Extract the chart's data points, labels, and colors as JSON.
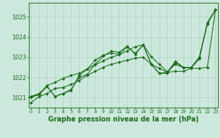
{
  "background_color": "#cce8dc",
  "line_color": "#1a6b1a",
  "grid_color": "#aacfbe",
  "xlabel": "Graphe pression niveau de la mer (hPa)",
  "xlabel_fontsize": 7,
  "ylim": [
    1020.5,
    1025.7
  ],
  "xlim": [
    -0.3,
    23.3
  ],
  "yticks": [
    1021,
    1022,
    1023,
    1024,
    1025
  ],
  "xticks": [
    0,
    1,
    2,
    3,
    4,
    5,
    6,
    7,
    8,
    9,
    10,
    11,
    12,
    13,
    14,
    15,
    16,
    17,
    18,
    19,
    20,
    21,
    22,
    23
  ],
  "series": [
    [
      1020.75,
      1021.05,
      1021.2,
      1021.45,
      1021.5,
      1021.65,
      1021.85,
      1022.1,
      1022.3,
      1022.5,
      1022.65,
      1022.75,
      1022.85,
      1022.95,
      1023.0,
      1022.65,
      1022.45,
      1022.25,
      1022.3,
      1022.3,
      1022.45,
      1022.45,
      1022.5,
      1025.35
    ],
    [
      1021.05,
      1021.15,
      1021.55,
      1021.05,
      1021.2,
      1021.35,
      1022.1,
      1022.4,
      1022.85,
      1023.1,
      1023.2,
      1023.15,
      1023.5,
      1023.2,
      1023.6,
      1022.65,
      1022.2,
      1022.2,
      1022.75,
      1022.5,
      1022.5,
      1023.0,
      1024.7,
      1025.35
    ],
    [
      1021.05,
      1021.2,
      1021.55,
      1021.05,
      1021.2,
      1021.4,
      1022.0,
      1022.15,
      1022.65,
      1023.05,
      1023.3,
      1023.25,
      1023.55,
      1023.15,
      1023.62,
      1022.65,
      1022.2,
      1022.25,
      1022.8,
      1022.5,
      1022.5,
      1023.0,
      1024.65,
      1025.35
    ],
    [
      1021.0,
      1021.15,
      1021.6,
      1021.75,
      1021.95,
      1022.1,
      1022.2,
      1022.42,
      1022.62,
      1022.82,
      1023.0,
      1023.12,
      1023.32,
      1023.52,
      1023.62,
      1023.02,
      1022.65,
      1022.28,
      1022.65,
      1022.48,
      1022.48,
      1022.92,
      1024.72,
      1025.35
    ]
  ]
}
